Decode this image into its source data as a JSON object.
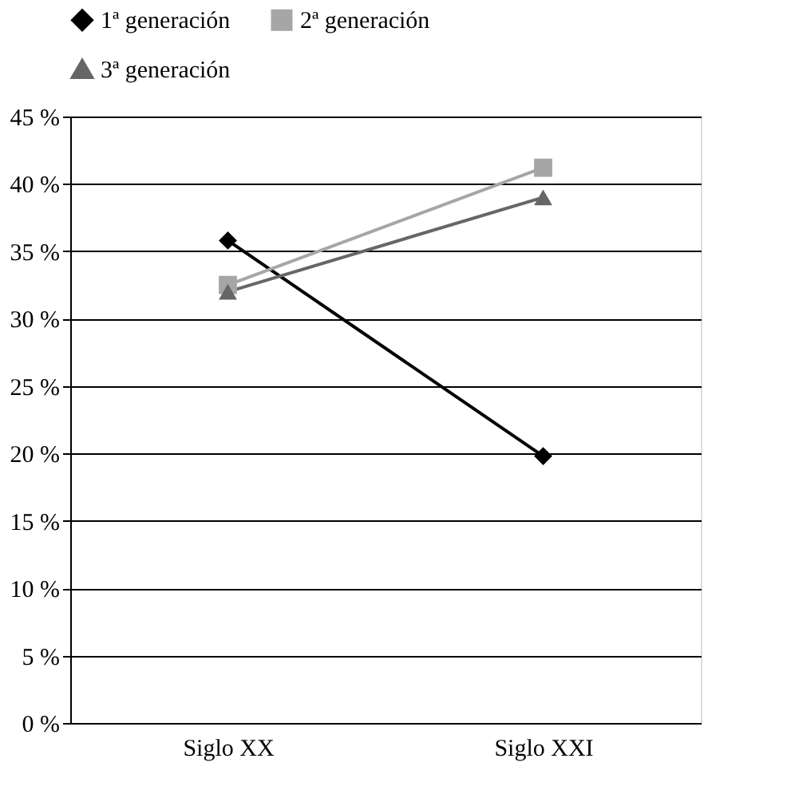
{
  "chart_data": {
    "type": "line",
    "categories": [
      "Siglo XX",
      "Siglo XXI"
    ],
    "series": [
      {
        "name": "1ª generación",
        "color": "#000000",
        "marker": "diamond",
        "values": [
          35.8,
          19.8
        ]
      },
      {
        "name": "2ª generación",
        "color": "#a6a6a6",
        "marker": "square",
        "values": [
          32.5,
          41.2
        ]
      },
      {
        "name": "3ª generación",
        "color": "#666666",
        "marker": "triangle",
        "values": [
          32.0,
          39.0
        ]
      }
    ],
    "ylim": [
      0,
      45
    ],
    "yticks": [
      {
        "value": 0,
        "label": "0 %"
      },
      {
        "value": 5,
        "label": "5 %"
      },
      {
        "value": 10,
        "label": "10 %"
      },
      {
        "value": 15,
        "label": "15 %"
      },
      {
        "value": 20,
        "label": "20 %"
      },
      {
        "value": 25,
        "label": "25 %"
      },
      {
        "value": 30,
        "label": "30 %"
      },
      {
        "value": 35,
        "label": "35 %"
      },
      {
        "value": 40,
        "label": "40 %"
      },
      {
        "value": 45,
        "label": "45 %"
      }
    ],
    "grid": "y",
    "legend": "top",
    "line_style": "solid"
  }
}
